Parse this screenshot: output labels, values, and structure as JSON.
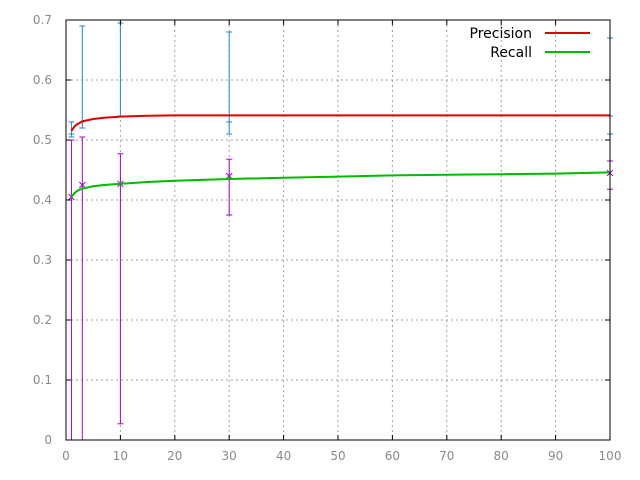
{
  "chart_data": {
    "type": "line",
    "title": "",
    "xlabel": "",
    "ylabel": "",
    "xlim": [
      0,
      100
    ],
    "ylim": [
      0,
      0.7
    ],
    "xticks": [
      0,
      10,
      20,
      30,
      40,
      50,
      60,
      70,
      80,
      90,
      100
    ],
    "yticks": [
      0,
      0.1,
      0.2,
      0.3,
      0.4,
      0.5,
      0.6,
      0.7
    ],
    "x_tick_labels": [
      "0",
      "10",
      "20",
      "30",
      "40",
      "50",
      "60",
      "70",
      "80",
      "90",
      "100"
    ],
    "y_tick_labels": [
      "0",
      "0.1",
      "0.2",
      "0.3",
      "0.4",
      "0.5",
      "0.6",
      "0.7"
    ],
    "grid": true,
    "legend_position": "top-right",
    "series": [
      {
        "name": "Precision",
        "color": "#e00000",
        "x": [
          1,
          1.5,
          2,
          3,
          5,
          7,
          10,
          15,
          20,
          30,
          50,
          70,
          100
        ],
        "y": [
          0.515,
          0.522,
          0.526,
          0.531,
          0.535,
          0.537,
          0.539,
          0.5405,
          0.541,
          0.541,
          0.541,
          0.541,
          0.541
        ]
      },
      {
        "name": "Recall",
        "color": "#00bb00",
        "x": [
          1,
          1.5,
          2,
          3,
          5,
          7,
          10,
          15,
          20,
          30,
          40,
          50,
          60,
          70,
          80,
          90,
          100
        ],
        "y": [
          0.405,
          0.411,
          0.415,
          0.419,
          0.423,
          0.425,
          0.427,
          0.43,
          0.432,
          0.435,
          0.437,
          0.439,
          0.441,
          0.442,
          0.443,
          0.444,
          0.446
        ]
      }
    ],
    "error_bars": [
      {
        "color": "#2288cc",
        "marker": "+",
        "points": [
          {
            "x": 1,
            "y": 0.51,
            "low": 0.505,
            "high": 0.53
          },
          {
            "x": 3,
            "y": 0.52,
            "low": 0.52,
            "high": 0.69
          },
          {
            "x": 10,
            "y": 0.54,
            "low": 0.54,
            "high": 0.695
          },
          {
            "x": 30,
            "y": 0.53,
            "low": 0.51,
            "high": 0.68
          },
          {
            "x": 100,
            "y": 0.54,
            "low": 0.51,
            "high": 0.67
          }
        ]
      },
      {
        "color": "#aa00cc",
        "marker": "x",
        "points": [
          {
            "x": 1,
            "y": 0.405,
            "low": 0.0,
            "high": 0.5
          },
          {
            "x": 3,
            "y": 0.425,
            "low": 0.0,
            "high": 0.505
          },
          {
            "x": 10,
            "y": 0.427,
            "low": 0.027,
            "high": 0.477
          },
          {
            "x": 30,
            "y": 0.44,
            "low": 0.375,
            "high": 0.468
          },
          {
            "x": 100,
            "y": 0.445,
            "low": 0.418,
            "high": 0.465
          }
        ]
      }
    ]
  }
}
